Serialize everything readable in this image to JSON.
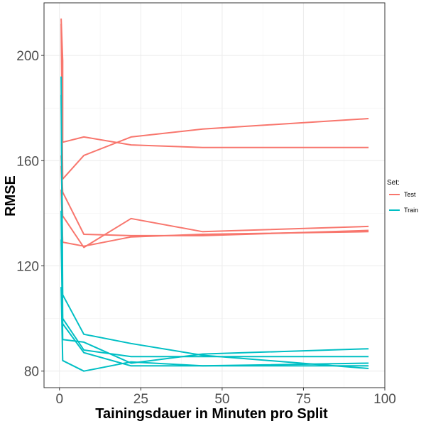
{
  "chart_data": {
    "type": "line",
    "xlabel": "Tainingsdauer in Minuten pro Split",
    "ylabel": "RMSE",
    "xlim": [
      -4.75,
      100
    ],
    "ylim": [
      73.7,
      220
    ],
    "x_ticks": [
      0,
      25,
      50,
      75,
      100
    ],
    "y_ticks": [
      80,
      120,
      160,
      200
    ],
    "grid": true,
    "legend": {
      "title": "Set:",
      "position": "right",
      "entries": [
        {
          "label": "Test",
          "color": "#F8766D"
        },
        {
          "label": "Train",
          "color": "#00BFC4"
        }
      ]
    },
    "series": [
      {
        "name": "Test",
        "color": "#F8766D",
        "points": [
          [
            0.5,
            214
          ],
          [
            1,
            198
          ],
          [
            1,
            167
          ],
          [
            7.5,
            169
          ],
          [
            22,
            166
          ],
          [
            44,
            165
          ],
          [
            95,
            165
          ]
        ]
      },
      {
        "name": "Test",
        "color": "#F8766D",
        "points": [
          [
            0.5,
            212
          ],
          [
            1,
            153
          ],
          [
            7.5,
            162
          ],
          [
            22,
            169
          ],
          [
            44,
            172
          ],
          [
            95,
            176
          ]
        ]
      },
      {
        "name": "Test",
        "color": "#F8766D",
        "points": [
          [
            0.5,
            162
          ],
          [
            1,
            148
          ],
          [
            7.5,
            132
          ],
          [
            22,
            131.5
          ],
          [
            44,
            131.5
          ],
          [
            95,
            133.5
          ]
        ]
      },
      {
        "name": "Test",
        "color": "#F8766D",
        "points": [
          [
            0.5,
            158
          ],
          [
            1,
            139
          ],
          [
            7.5,
            127
          ],
          [
            22,
            138
          ],
          [
            44,
            133
          ],
          [
            95,
            135
          ]
        ]
      },
      {
        "name": "Test",
        "color": "#F8766D",
        "points": [
          [
            0.5,
            149
          ],
          [
            1,
            129
          ],
          [
            7.5,
            127.5
          ],
          [
            22,
            131
          ],
          [
            44,
            132
          ],
          [
            95,
            133
          ]
        ]
      },
      {
        "name": "Train",
        "color": "#00BFC4",
        "points": [
          [
            0.5,
            192
          ],
          [
            1,
            109
          ],
          [
            7.5,
            94
          ],
          [
            22,
            90.5
          ],
          [
            44,
            86
          ],
          [
            95,
            81
          ]
        ]
      },
      {
        "name": "Train",
        "color": "#00BFC4",
        "points": [
          [
            0.5,
            185
          ],
          [
            1,
            100
          ],
          [
            7.5,
            88
          ],
          [
            22,
            85.5
          ],
          [
            44,
            85.5
          ],
          [
            95,
            85.5
          ]
        ]
      },
      {
        "name": "Train",
        "color": "#00BFC4",
        "points": [
          [
            0.5,
            141
          ],
          [
            1,
            92
          ],
          [
            7.5,
            91
          ],
          [
            22,
            83
          ],
          [
            44,
            86.5
          ],
          [
            95,
            88.5
          ]
        ]
      },
      {
        "name": "Train",
        "color": "#00BFC4",
        "points": [
          [
            0.5,
            130
          ],
          [
            1,
            98
          ],
          [
            7.5,
            87
          ],
          [
            22,
            82
          ],
          [
            44,
            82
          ],
          [
            95,
            82
          ]
        ]
      },
      {
        "name": "Train",
        "color": "#00BFC4",
        "points": [
          [
            0.5,
            112
          ],
          [
            1,
            84
          ],
          [
            7.5,
            80
          ],
          [
            22,
            83.5
          ],
          [
            44,
            82
          ],
          [
            95,
            83
          ]
        ]
      }
    ]
  }
}
